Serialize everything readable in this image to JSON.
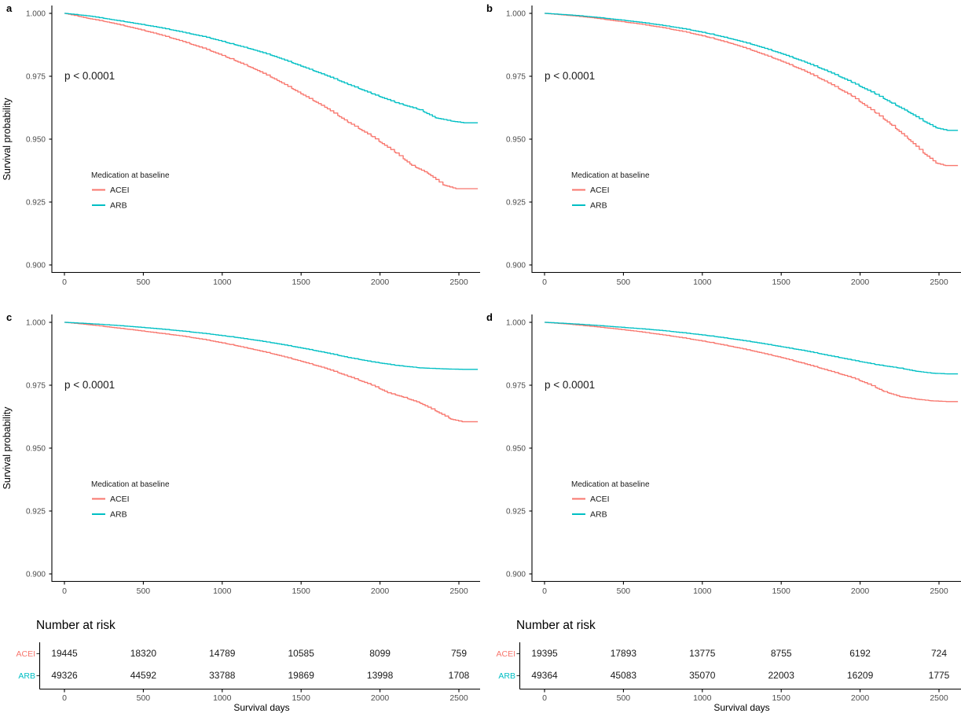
{
  "chart_data": {
    "type": "line",
    "variant": "kaplan-meier-step-curves",
    "colors": {
      "ACEI": "#F8766D",
      "ARB": "#00BFC4"
    },
    "style": {
      "axis_color": "#000000",
      "tick_label_color": "#4d4d4d",
      "text_color": "#1a1a1a",
      "background": "#ffffff"
    },
    "y_axis": {
      "title": "Survival probability",
      "ticks": [
        "1.000",
        "0.975",
        "0.950",
        "0.925",
        "0.900"
      ],
      "ylim": [
        0.9,
        1.002
      ],
      "grid": "off"
    },
    "x_axis": {
      "title": "Survival days",
      "ticks": [
        0,
        500,
        1000,
        1500,
        2000,
        2500
      ],
      "xlim": [
        0,
        2620
      ],
      "grid": "off"
    },
    "p_label": "p < 0.0001",
    "legend": {
      "title": "Medication at baseline",
      "items": [
        "ACEI",
        "ARB"
      ],
      "position": "inside-lower-left"
    },
    "panels": [
      {
        "label": "a",
        "series": [
          {
            "name": "ACEI",
            "points": [
              [
                0,
                1.0
              ],
              [
                150,
                0.998
              ],
              [
                300,
                0.9962
              ],
              [
                450,
                0.994
              ],
              [
                600,
                0.9916
              ],
              [
                750,
                0.9888
              ],
              [
                900,
                0.9857
              ],
              [
                1050,
                0.982
              ],
              [
                1200,
                0.978
              ],
              [
                1350,
                0.9733
              ],
              [
                1500,
                0.968
              ],
              [
                1650,
                0.9627
              ],
              [
                1800,
                0.9566
              ],
              [
                1950,
                0.951
              ],
              [
                2100,
                0.9445
              ],
              [
                2200,
                0.9396
              ],
              [
                2300,
                0.9365
              ],
              [
                2400,
                0.9318
              ],
              [
                2480,
                0.9303
              ],
              [
                2620,
                0.9303
              ]
            ]
          },
          {
            "name": "ARB",
            "points": [
              [
                0,
                1.0
              ],
              [
                150,
                0.999
              ],
              [
                300,
                0.9975
              ],
              [
                450,
                0.996
              ],
              [
                600,
                0.9944
              ],
              [
                750,
                0.9925
              ],
              [
                900,
                0.9905
              ],
              [
                1050,
                0.988
              ],
              [
                1200,
                0.9855
              ],
              [
                1350,
                0.9825
              ],
              [
                1500,
                0.979
              ],
              [
                1650,
                0.9755
              ],
              [
                1800,
                0.9717
              ],
              [
                1950,
                0.968
              ],
              [
                2100,
                0.9645
              ],
              [
                2250,
                0.9617
              ],
              [
                2350,
                0.9585
              ],
              [
                2450,
                0.9572
              ],
              [
                2530,
                0.9565
              ],
              [
                2620,
                0.9565
              ]
            ]
          }
        ]
      },
      {
        "label": "b",
        "series": [
          {
            "name": "ACEI",
            "points": [
              [
                0,
                1.0
              ],
              [
                150,
                0.9992
              ],
              [
                300,
                0.9983
              ],
              [
                450,
                0.997
              ],
              [
                600,
                0.9958
              ],
              [
                750,
                0.9943
              ],
              [
                900,
                0.9925
              ],
              [
                1050,
                0.9903
              ],
              [
                1200,
                0.9877
              ],
              [
                1350,
                0.9845
              ],
              [
                1500,
                0.981
              ],
              [
                1650,
                0.977
              ],
              [
                1800,
                0.9723
              ],
              [
                1950,
                0.967
              ],
              [
                2100,
                0.9603
              ],
              [
                2200,
                0.9555
              ],
              [
                2300,
                0.9503
              ],
              [
                2400,
                0.9445
              ],
              [
                2480,
                0.9405
              ],
              [
                2540,
                0.9395
              ],
              [
                2620,
                0.9395
              ]
            ]
          },
          {
            "name": "ARB",
            "points": [
              [
                0,
                1.0
              ],
              [
                150,
                0.9994
              ],
              [
                300,
                0.9986
              ],
              [
                450,
                0.9976
              ],
              [
                600,
                0.9965
              ],
              [
                750,
                0.9952
              ],
              [
                900,
                0.9937
              ],
              [
                1050,
                0.9918
              ],
              [
                1200,
                0.9896
              ],
              [
                1350,
                0.987
              ],
              [
                1500,
                0.984
              ],
              [
                1650,
                0.9806
              ],
              [
                1800,
                0.9768
              ],
              [
                1950,
                0.9725
              ],
              [
                2100,
                0.9678
              ],
              [
                2200,
                0.9643
              ],
              [
                2300,
                0.961
              ],
              [
                2400,
                0.9572
              ],
              [
                2480,
                0.9545
              ],
              [
                2550,
                0.9535
              ],
              [
                2620,
                0.9535
              ]
            ]
          }
        ]
      },
      {
        "label": "c",
        "series": [
          {
            "name": "ACEI",
            "points": [
              [
                0,
                1.0
              ],
              [
                150,
                0.9991
              ],
              [
                300,
                0.998
              ],
              [
                450,
                0.9969
              ],
              [
                600,
                0.9957
              ],
              [
                750,
                0.9945
              ],
              [
                900,
                0.993
              ],
              [
                1050,
                0.9912
              ],
              [
                1200,
                0.9892
              ],
              [
                1350,
                0.987
              ],
              [
                1500,
                0.9845
              ],
              [
                1650,
                0.9818
              ],
              [
                1800,
                0.9785
              ],
              [
                1950,
                0.975
              ],
              [
                2050,
                0.972
              ],
              [
                2150,
                0.9702
              ],
              [
                2250,
                0.968
              ],
              [
                2350,
                0.9648
              ],
              [
                2450,
                0.9615
              ],
              [
                2520,
                0.9605
              ],
              [
                2620,
                0.9605
              ]
            ]
          },
          {
            "name": "ARB",
            "points": [
              [
                0,
                1.0
              ],
              [
                150,
                0.9995
              ],
              [
                300,
                0.9989
              ],
              [
                450,
                0.9982
              ],
              [
                600,
                0.9974
              ],
              [
                750,
                0.9965
              ],
              [
                900,
                0.9955
              ],
              [
                1050,
                0.9943
              ],
              [
                1200,
                0.993
              ],
              [
                1350,
                0.9915
              ],
              [
                1500,
                0.9898
              ],
              [
                1650,
                0.988
              ],
              [
                1800,
                0.986
              ],
              [
                1950,
                0.9843
              ],
              [
                2100,
                0.9829
              ],
              [
                2250,
                0.9819
              ],
              [
                2400,
                0.9815
              ],
              [
                2530,
                0.9813
              ],
              [
                2620,
                0.9813
              ]
            ]
          }
        ]
      },
      {
        "label": "d",
        "series": [
          {
            "name": "ACEI",
            "points": [
              [
                0,
                1.0
              ],
              [
                150,
                0.9993
              ],
              [
                300,
                0.9984
              ],
              [
                450,
                0.9974
              ],
              [
                600,
                0.9963
              ],
              [
                750,
                0.995
              ],
              [
                900,
                0.9936
              ],
              [
                1050,
                0.992
              ],
              [
                1200,
                0.9902
              ],
              [
                1350,
                0.9882
              ],
              [
                1500,
                0.986
              ],
              [
                1650,
                0.9835
              ],
              [
                1800,
                0.9808
              ],
              [
                1950,
                0.978
              ],
              [
                2050,
                0.9755
              ],
              [
                2150,
                0.9725
              ],
              [
                2250,
                0.9705
              ],
              [
                2350,
                0.9695
              ],
              [
                2450,
                0.9688
              ],
              [
                2550,
                0.9685
              ],
              [
                2620,
                0.9685
              ]
            ]
          },
          {
            "name": "ARB",
            "points": [
              [
                0,
                1.0
              ],
              [
                150,
                0.9995
              ],
              [
                300,
                0.9989
              ],
              [
                450,
                0.9982
              ],
              [
                600,
                0.9975
              ],
              [
                750,
                0.9967
              ],
              [
                900,
                0.9957
              ],
              [
                1050,
                0.9946
              ],
              [
                1200,
                0.9933
              ],
              [
                1350,
                0.9919
              ],
              [
                1500,
                0.9903
              ],
              [
                1650,
                0.9887
              ],
              [
                1800,
                0.9868
              ],
              [
                1950,
                0.985
              ],
              [
                2100,
                0.9832
              ],
              [
                2250,
                0.9818
              ],
              [
                2350,
                0.9806
              ],
              [
                2450,
                0.9798
              ],
              [
                2550,
                0.9795
              ],
              [
                2620,
                0.9795
              ]
            ]
          }
        ]
      }
    ],
    "risk_tables": [
      {
        "title": "Number at risk",
        "rows": [
          {
            "name": "ACEI",
            "values": [
              "19445",
              "18320",
              "14789",
              "10585",
              "8099",
              "759"
            ]
          },
          {
            "name": "ARB",
            "values": [
              "49326",
              "44592",
              "33788",
              "19869",
              "13998",
              "1708"
            ]
          }
        ]
      },
      {
        "title": "Number at risk",
        "rows": [
          {
            "name": "ACEI",
            "values": [
              "19395",
              "17893",
              "13775",
              "8755",
              "6192",
              "724"
            ]
          },
          {
            "name": "ARB",
            "values": [
              "49364",
              "45083",
              "35070",
              "22003",
              "16209",
              "1775"
            ]
          }
        ]
      }
    ]
  }
}
